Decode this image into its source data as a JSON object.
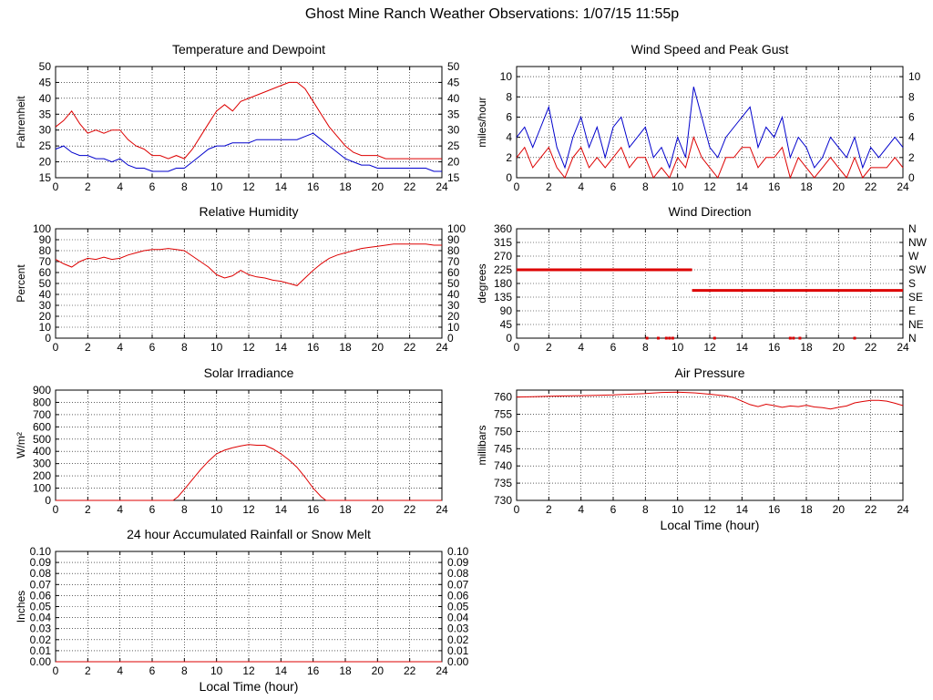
{
  "page": {
    "title": "Ghost Mine Ranch Weather Observations: 1/07/15 11:55p"
  },
  "chart_data": [
    {
      "id": "temp",
      "type": "line",
      "title": "Temperature and Dewpoint",
      "ylabel": "Fahrenheit",
      "xlabel": "",
      "ylim": [
        15,
        50
      ],
      "yticks": [
        "15",
        "20",
        "25",
        "30",
        "35",
        "40",
        "45",
        "50"
      ],
      "xticks": [
        "0",
        "2",
        "4",
        "6",
        "8",
        "10",
        "12",
        "14",
        "16",
        "18",
        "20",
        "22",
        "24"
      ],
      "grid": true,
      "series": [
        {
          "color": "#dd0000",
          "x": [
            0,
            0.5,
            1,
            1.5,
            2,
            2.5,
            3,
            3.5,
            4,
            4.5,
            5,
            5.5,
            6,
            6.5,
            7,
            7.5,
            8,
            8.5,
            9,
            9.5,
            10,
            10.5,
            11,
            11.5,
            12,
            12.5,
            13,
            13.5,
            14,
            14.5,
            15,
            15.5,
            16,
            16.5,
            17,
            17.5,
            18,
            18.5,
            19,
            19.5,
            20,
            20.5,
            21,
            21.5,
            22,
            22.5,
            23,
            23.5,
            24
          ],
          "y": [
            31,
            33,
            36,
            32,
            29,
            30,
            29,
            30,
            30,
            27,
            25,
            24,
            22,
            22,
            21,
            22,
            21,
            24,
            28,
            32,
            36,
            38,
            36,
            39,
            40,
            41,
            42,
            43,
            44,
            45,
            45,
            43,
            39,
            35,
            31,
            28,
            25,
            23,
            22,
            22,
            22,
            21,
            21,
            21,
            21,
            21,
            21,
            21,
            21
          ]
        },
        {
          "color": "#0000cc",
          "x": [
            0,
            0.5,
            1,
            1.5,
            2,
            2.5,
            3,
            3.5,
            4,
            4.5,
            5,
            5.5,
            6,
            6.5,
            7,
            7.5,
            8,
            8.5,
            9,
            9.5,
            10,
            10.5,
            11,
            11.5,
            12,
            12.5,
            13,
            13.5,
            14,
            14.5,
            15,
            15.5,
            16,
            16.5,
            17,
            17.5,
            18,
            18.5,
            19,
            19.5,
            20,
            20.5,
            21,
            21.5,
            22,
            22.5,
            23,
            23.5,
            24
          ],
          "y": [
            24,
            25,
            23,
            22,
            22,
            21,
            21,
            20,
            21,
            19,
            18,
            18,
            17,
            17,
            17,
            18,
            18,
            20,
            22,
            24,
            25,
            25,
            26,
            26,
            26,
            27,
            27,
            27,
            27,
            27,
            27,
            28,
            29,
            27,
            25,
            23,
            21,
            20,
            19,
            19,
            18,
            18,
            18,
            18,
            18,
            18,
            18,
            17,
            17
          ]
        }
      ]
    },
    {
      "id": "wind",
      "type": "line",
      "title": "Wind Speed and Peak Gust",
      "ylabel": "miles/hour",
      "xlabel": "",
      "ylim": [
        0,
        11
      ],
      "yticks": [
        "0",
        "2",
        "4",
        "6",
        "8",
        "10"
      ],
      "xticks": [
        "0",
        "2",
        "4",
        "6",
        "8",
        "10",
        "12",
        "14",
        "16",
        "18",
        "20",
        "22",
        "24"
      ],
      "grid": true,
      "series": [
        {
          "color": "#0000cc",
          "x": [
            0,
            0.5,
            1,
            1.5,
            2,
            2.5,
            3,
            3.5,
            4,
            4.5,
            5,
            5.5,
            6,
            6.5,
            7,
            7.5,
            8,
            8.5,
            9,
            9.5,
            10,
            10.5,
            11,
            11.5,
            12,
            12.5,
            13,
            13.5,
            14,
            14.5,
            15,
            15.5,
            16,
            16.5,
            17,
            17.5,
            18,
            18.5,
            19,
            19.5,
            20,
            20.5,
            21,
            21.5,
            22,
            22.5,
            23,
            23.5,
            24
          ],
          "y": [
            4,
            5,
            3,
            5,
            7,
            3,
            1,
            4,
            6,
            3,
            5,
            2,
            5,
            6,
            3,
            4,
            5,
            2,
            3,
            1,
            4,
            2,
            9,
            6,
            3,
            2,
            4,
            5,
            6,
            7,
            3,
            5,
            4,
            6,
            2,
            4,
            3,
            1,
            2,
            4,
            3,
            2,
            4,
            1,
            3,
            2,
            3,
            4,
            3
          ]
        },
        {
          "color": "#dd0000",
          "x": [
            0,
            0.5,
            1,
            1.5,
            2,
            2.5,
            3,
            3.5,
            4,
            4.5,
            5,
            5.5,
            6,
            6.5,
            7,
            7.5,
            8,
            8.5,
            9,
            9.5,
            10,
            10.5,
            11,
            11.5,
            12,
            12.5,
            13,
            13.5,
            14,
            14.5,
            15,
            15.5,
            16,
            16.5,
            17,
            17.5,
            18,
            18.5,
            19,
            19.5,
            20,
            20.5,
            21,
            21.5,
            22,
            22.5,
            23,
            23.5,
            24
          ],
          "y": [
            2,
            3,
            1,
            2,
            3,
            1,
            0,
            2,
            3,
            1,
            2,
            1,
            2,
            3,
            1,
            2,
            2,
            0,
            1,
            0,
            2,
            1,
            4,
            2,
            1,
            0,
            2,
            2,
            3,
            3,
            1,
            2,
            2,
            3,
            0,
            2,
            1,
            0,
            1,
            2,
            1,
            0,
            2,
            0,
            1,
            1,
            1,
            2,
            1
          ]
        }
      ]
    },
    {
      "id": "rh",
      "type": "line",
      "title": "Relative Humidity",
      "ylabel": "Percent",
      "xlabel": "",
      "ylim": [
        0,
        100
      ],
      "yticks": [
        "0",
        "10",
        "20",
        "30",
        "40",
        "50",
        "60",
        "70",
        "80",
        "90",
        "100"
      ],
      "xticks": [
        "0",
        "2",
        "4",
        "6",
        "8",
        "10",
        "12",
        "14",
        "16",
        "18",
        "20",
        "22",
        "24"
      ],
      "grid": true,
      "series": [
        {
          "color": "#dd0000",
          "x": [
            0,
            0.5,
            1,
            1.5,
            2,
            2.5,
            3,
            3.5,
            4,
            4.5,
            5,
            5.5,
            6,
            6.5,
            7,
            7.5,
            8,
            8.5,
            9,
            9.5,
            10,
            10.5,
            11,
            11.5,
            12,
            12.5,
            13,
            13.5,
            14,
            14.5,
            15,
            15.5,
            16,
            16.5,
            17,
            17.5,
            18,
            18.5,
            19,
            19.5,
            20,
            20.5,
            21,
            21.5,
            22,
            22.5,
            23,
            23.5,
            24
          ],
          "y": [
            72,
            68,
            65,
            70,
            73,
            72,
            74,
            72,
            73,
            76,
            78,
            80,
            81,
            81,
            82,
            81,
            80,
            75,
            70,
            65,
            58,
            55,
            57,
            62,
            58,
            56,
            55,
            53,
            52,
            50,
            48,
            55,
            62,
            68,
            73,
            76,
            78,
            80,
            82,
            83,
            84,
            85,
            86,
            86,
            86,
            86,
            86,
            85,
            85
          ]
        }
      ]
    },
    {
      "id": "dir",
      "type": "scatter",
      "title": "Wind Direction",
      "ylabel": "degrees",
      "xlabel": "",
      "ylim": [
        0,
        360
      ],
      "yticks": [
        "0",
        "45",
        "90",
        "135",
        "180",
        "225",
        "270",
        "315",
        "360"
      ],
      "ytick_right": [
        "N",
        "NE",
        "E",
        "SE",
        "S",
        "SW",
        "W",
        "NW",
        "N"
      ],
      "xticks": [
        "0",
        "2",
        "4",
        "6",
        "8",
        "10",
        "12",
        "14",
        "16",
        "18",
        "20",
        "22",
        "24"
      ],
      "grid": true,
      "segments": [
        {
          "x0": 0,
          "x1": 10.9,
          "y": 225
        },
        {
          "x0": 10.9,
          "x1": 24,
          "y": 157
        }
      ],
      "points": [
        {
          "x": 8.1,
          "y": 0
        },
        {
          "x": 8.8,
          "y": 0
        },
        {
          "x": 9.3,
          "y": 0
        },
        {
          "x": 9.5,
          "y": 0
        },
        {
          "x": 9.7,
          "y": 0
        },
        {
          "x": 12.3,
          "y": 0
        },
        {
          "x": 17.0,
          "y": 0
        },
        {
          "x": 17.2,
          "y": 0
        },
        {
          "x": 17.6,
          "y": 0
        },
        {
          "x": 21.0,
          "y": 0
        }
      ],
      "color": "#dd0000"
    },
    {
      "id": "solar",
      "type": "line",
      "title": "Solar Irradiance",
      "ylabel": "W/m²",
      "xlabel": "",
      "ylim": [
        0,
        900
      ],
      "yticks": [
        "0",
        "100",
        "200",
        "300",
        "400",
        "500",
        "600",
        "700",
        "800",
        "900"
      ],
      "xticks": [
        "0",
        "2",
        "4",
        "6",
        "8",
        "10",
        "12",
        "14",
        "16",
        "18",
        "20",
        "22",
        "24"
      ],
      "grid": true,
      "series": [
        {
          "color": "#dd0000",
          "x": [
            0,
            7.3,
            7.6,
            8,
            8.5,
            9,
            9.5,
            10,
            10.5,
            11,
            11.5,
            12,
            12.5,
            13,
            13.5,
            14,
            14.5,
            15,
            15.5,
            16,
            16.5,
            16.8,
            24
          ],
          "y": [
            0,
            0,
            30,
            90,
            170,
            250,
            320,
            380,
            410,
            430,
            445,
            455,
            450,
            450,
            420,
            380,
            330,
            270,
            190,
            100,
            30,
            0,
            0
          ]
        }
      ]
    },
    {
      "id": "pressure",
      "type": "line",
      "title": "Air Pressure",
      "ylabel": "millibars",
      "xlabel": "Local Time (hour)",
      "ylim": [
        730,
        762
      ],
      "yticks": [
        "730",
        "735",
        "740",
        "745",
        "750",
        "755",
        "760"
      ],
      "xticks": [
        "0",
        "2",
        "4",
        "6",
        "8",
        "10",
        "12",
        "14",
        "16",
        "18",
        "20",
        "22",
        "24"
      ],
      "grid": true,
      "series": [
        {
          "color": "#dd0000",
          "x": [
            0,
            1,
            2,
            3,
            4,
            5,
            6,
            7,
            8,
            9,
            10,
            11,
            12,
            13,
            13.5,
            14,
            14.5,
            15,
            15.5,
            16,
            16.5,
            17,
            17.5,
            18,
            18.5,
            19,
            19.5,
            20,
            20.5,
            21,
            21.5,
            22,
            22.5,
            23,
            23.5,
            24
          ],
          "y": [
            760,
            760.1,
            760.2,
            760.3,
            760.4,
            760.5,
            760.6,
            760.8,
            761,
            761.3,
            761.4,
            761.2,
            760.8,
            760.3,
            759.8,
            758.8,
            757.8,
            757.2,
            757.9,
            757.5,
            757.0,
            757.4,
            757.2,
            757.6,
            757.1,
            756.9,
            756.5,
            757.0,
            757.4,
            758.3,
            758.7,
            759.0,
            759.0,
            758.8,
            758.2,
            757.5
          ]
        }
      ]
    },
    {
      "id": "rain",
      "type": "line",
      "title": "24 hour Accumulated Rainfall or Snow Melt",
      "ylabel": "Inches",
      "xlabel": "Local Time (hour)",
      "ylim": [
        0,
        0.1
      ],
      "yticks": [
        "0.00",
        "0.01",
        "0.02",
        "0.03",
        "0.04",
        "0.05",
        "0.06",
        "0.07",
        "0.08",
        "0.09",
        "0.10"
      ],
      "xticks": [
        "0",
        "2",
        "4",
        "6",
        "8",
        "10",
        "12",
        "14",
        "16",
        "18",
        "20",
        "22",
        "24"
      ],
      "grid": true,
      "series": [
        {
          "color": "#dd0000",
          "x": [
            0,
            24
          ],
          "y": [
            0,
            0
          ]
        }
      ]
    }
  ]
}
